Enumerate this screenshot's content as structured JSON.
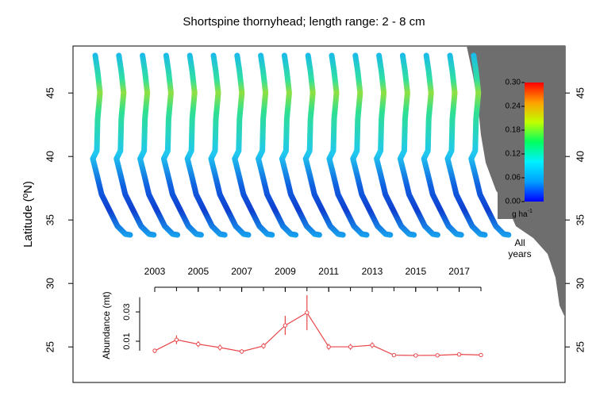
{
  "chart_data": [
    {
      "type": "map",
      "title": "Shortspine thornyhead; length range: 2 - 8 cm",
      "ylabel": "Latitude (ºN)",
      "ylim": [
        22.2,
        48.7
      ],
      "yticks": [
        25,
        30,
        35,
        40,
        45
      ],
      "annotation": [
        "All",
        "years"
      ],
      "colorbar": {
        "lim": [
          0,
          0.3
        ],
        "ticks": [
          {
            "value": 0,
            "label": "0.00"
          },
          {
            "value": 0.06,
            "label": "0.06"
          },
          {
            "value": 0.12,
            "label": "0.12"
          },
          {
            "value": 0.18,
            "label": "0.18"
          },
          {
            "value": 0.24,
            "label": "0.24"
          },
          {
            "value": 0.3,
            "label": "0.30"
          }
        ],
        "label": "g ha",
        "label_exponent": "-1",
        "colors": [
          "#0000ff",
          "#00a0ff",
          "#00f0ff",
          "#00ff60",
          "#c0ff00",
          "#ffa000",
          "#ff0000"
        ]
      }
    },
    {
      "type": "line",
      "ylabel": "Abundance (mt)",
      "x": [
        2003,
        2004,
        2005,
        2006,
        2007,
        2008,
        2009,
        2010,
        2011,
        2012,
        2013,
        2014,
        2015,
        2016,
        2017,
        2018
      ],
      "xlim": [
        2003,
        2018
      ],
      "xticks": [
        2003,
        2005,
        2007,
        2009,
        2011,
        2013,
        2015,
        2017
      ],
      "ylim": [
        -0.002,
        0.04
      ],
      "yticks": [
        0.01,
        0.03
      ],
      "series": [
        {
          "color": "#e8474a",
          "values": [
            0.0035,
            0.011,
            0.008,
            0.0057,
            0.003,
            0.0068,
            0.0208,
            0.0295,
            0.0062,
            0.0062,
            0.0073,
            0.0005,
            0.0003,
            0.0004,
            0.001,
            0.0006
          ],
          "errors": [
            0.0015,
            0.003,
            0.002,
            0.002,
            0.0015,
            0.002,
            0.0065,
            0.012,
            0.002,
            0.002,
            0.002,
            0.0008,
            0.0006,
            0.0006,
            0.0008,
            0.0006
          ]
        }
      ]
    }
  ]
}
